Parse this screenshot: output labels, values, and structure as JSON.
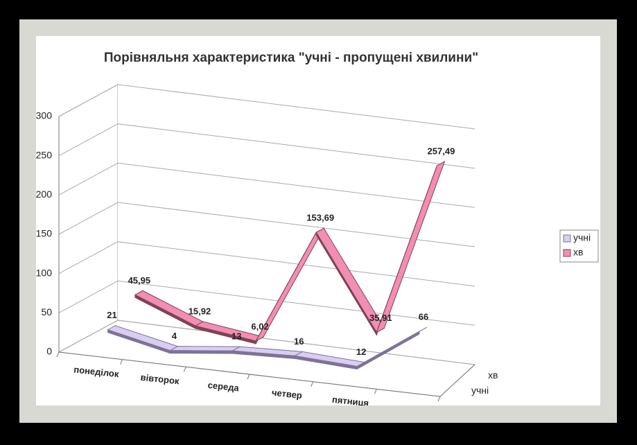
{
  "chart_data": {
    "type": "line3d",
    "title": "Порівняльня характеристика \"учні - пропущені хвилини\"",
    "categories": [
      "понеділок",
      "вівторок",
      "середа",
      "четвер",
      "пятниця",
      null
    ],
    "series": [
      {
        "name": "учні",
        "color": "#d9cdf2",
        "edge": "#7e7396",
        "values": [
          21,
          4,
          13,
          16,
          12,
          66
        ]
      },
      {
        "name": "хв",
        "color": "#f28db4",
        "edge": "#7f4352",
        "values": [
          45.95,
          15.92,
          6.02,
          153.69,
          35.91,
          257.49
        ],
        "value_labels": [
          "45,95",
          "15,92",
          "6,02",
          "153,69",
          "35,91",
          "257,49"
        ]
      }
    ],
    "ylim": [
      0,
      300
    ],
    "yticks": [
      0,
      50,
      100,
      150,
      200,
      250,
      300
    ],
    "grid": true,
    "legend": "right"
  }
}
